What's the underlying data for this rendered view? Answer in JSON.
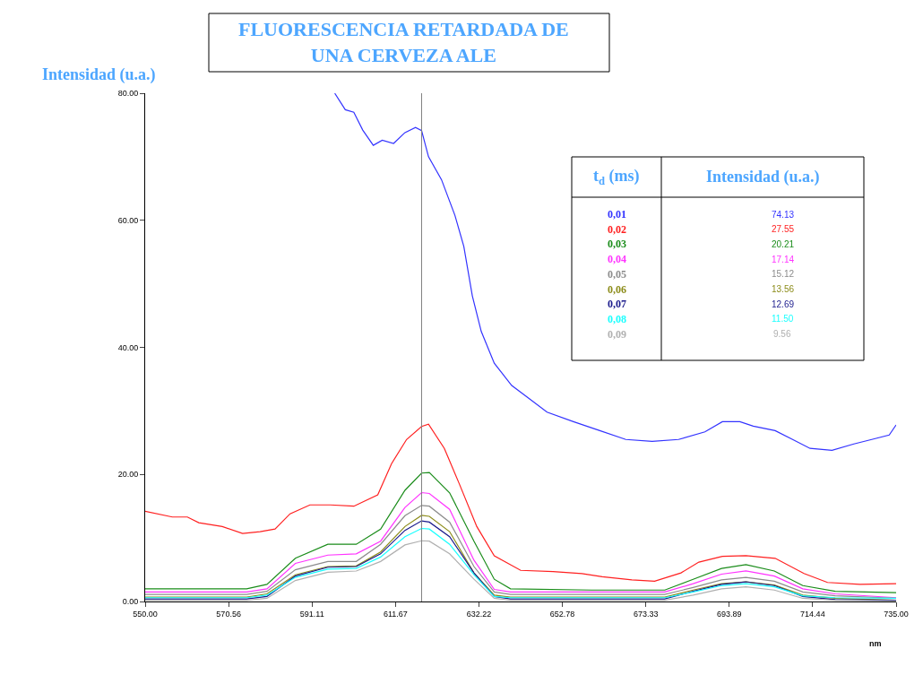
{
  "chart_data": {
    "type": "line",
    "title": "FLUORESCENCIA RETARDADA DE\nUNA CERVEZA ALE",
    "ylabel": "Intensidad (u.a.)",
    "xlabel": "nm",
    "xlim": [
      550,
      735
    ],
    "xticks": [
      {
        "value": 550,
        "label": "550.00"
      },
      {
        "value": 570.56,
        "label": "570.56"
      },
      {
        "value": 591.11,
        "label": "591.11"
      },
      {
        "value": 611.67,
        "label": "611.67"
      },
      {
        "value": 632.22,
        "label": "632.22"
      },
      {
        "value": 652.78,
        "label": "652.78"
      },
      {
        "value": 673.33,
        "label": "673.33"
      },
      {
        "value": 693.89,
        "label": "693.89"
      },
      {
        "value": 714.44,
        "label": "714.44"
      },
      {
        "value": 735,
        "label": "735.00"
      }
    ],
    "ylim": [
      0,
      80
    ],
    "yticks": [
      {
        "value": 0,
        "label": "0.00"
      },
      {
        "value": 20,
        "label": "20.00"
      },
      {
        "value": 40,
        "label": "40.00"
      },
      {
        "value": 60,
        "label": "60.00"
      },
      {
        "value": 80,
        "label": "80.00"
      }
    ],
    "x": [
      550,
      575,
      580,
      587,
      595,
      602,
      608,
      614,
      618.1,
      620,
      625,
      631,
      636,
      640,
      660,
      678,
      685,
      692,
      698,
      705,
      712,
      720,
      735
    ],
    "series": [
      {
        "name": "0,01",
        "color": "#3333ff",
        "x": [
          596.7,
          599.3,
          601.4,
          603.6,
          606.2,
          608.4,
          611.2,
          614.0,
          616.6,
          618.1,
          619.8,
          623.0,
          626.3,
          628.5,
          630.6,
          632.8,
          636.0,
          640.3,
          644.7,
          649.0,
          655.5,
          662.0,
          668.4,
          674.9,
          681.4,
          687.9,
          692.2,
          696.5,
          699.8,
          705.2,
          709.5,
          713.8,
          719.2,
          724.6,
          729.0,
          733.3,
          735
        ],
        "values": [
          80,
          77.4,
          77.0,
          74.2,
          71.8,
          72.6,
          72.1,
          73.8,
          74.6,
          74.13,
          70.0,
          66.4,
          60.8,
          55.9,
          48.1,
          42.5,
          37.5,
          34.0,
          31.9,
          29.8,
          28.3,
          26.9,
          25.5,
          25.2,
          25.5,
          26.7,
          28.3,
          28.3,
          27.6,
          26.9,
          25.5,
          24.1,
          23.8,
          24.8,
          25.5,
          26.2,
          27.8
        ]
      },
      {
        "name": "0,02",
        "color": "#ff2020",
        "x": [
          550,
          556.7,
          560.4,
          563.2,
          569.0,
          574.0,
          578.3,
          582.0,
          585.7,
          590.6,
          595.6,
          601.4,
          607.3,
          610.7,
          614.4,
          618.1,
          619.8,
          623.7,
          627.4,
          631.7,
          636.0,
          642.5,
          650.5,
          657.6,
          662.6,
          669.9,
          675.5,
          682.0,
          686.4,
          692.2,
          698.0,
          705.2,
          712.3,
          718.1,
          726.1,
          735
        ],
        "values": [
          14.2,
          13.3,
          13.3,
          12.4,
          11.8,
          10.7,
          11.0,
          11.4,
          13.8,
          15.2,
          15.2,
          15.0,
          16.8,
          21.7,
          25.5,
          27.55,
          27.9,
          24.1,
          18.5,
          11.8,
          7.2,
          4.9,
          4.7,
          4.4,
          3.9,
          3.4,
          3.2,
          4.5,
          6.2,
          7.1,
          7.2,
          6.8,
          4.4,
          3.0,
          2.7,
          2.8
        ]
      },
      {
        "name": "0,03",
        "color": "#1a8c1a",
        "values": [
          2.0,
          2.0,
          2.7,
          6.8,
          9.0,
          9.0,
          11.4,
          17.5,
          20.21,
          20.3,
          17.1,
          9.5,
          3.5,
          2.0,
          1.8,
          1.8,
          3.5,
          5.2,
          5.8,
          4.8,
          2.5,
          1.6,
          1.4
        ]
      },
      {
        "name": "0,04",
        "color": "#ff33ff",
        "values": [
          1.5,
          1.5,
          2.0,
          6.0,
          7.3,
          7.5,
          9.5,
          14.8,
          17.14,
          17.0,
          14.5,
          6.5,
          1.9,
          1.5,
          1.5,
          1.5,
          2.8,
          4.3,
          4.8,
          4.0,
          2.0,
          1.2,
          0.6
        ]
      },
      {
        "name": "0,05",
        "color": "#8c8c8c",
        "values": [
          1.1,
          1.1,
          1.6,
          5.0,
          6.3,
          6.3,
          9.0,
          13.5,
          15.12,
          15.0,
          12.5,
          5.5,
          1.5,
          1.1,
          1.1,
          1.1,
          2.2,
          3.4,
          3.8,
          3.2,
          1.5,
          0.9,
          0.5
        ]
      },
      {
        "name": "0,06",
        "color": "#8c8c1a",
        "values": [
          0.7,
          0.7,
          1.2,
          4.2,
          5.5,
          5.6,
          7.8,
          11.8,
          13.56,
          13.4,
          11.0,
          4.5,
          1.0,
          0.7,
          0.7,
          0.7,
          1.8,
          2.8,
          3.1,
          2.6,
          1.0,
          0.5,
          0.2
        ]
      },
      {
        "name": "0,07",
        "color": "#1a1a8c",
        "values": [
          0.4,
          0.4,
          0.8,
          4.0,
          5.4,
          5.5,
          7.5,
          11.2,
          12.69,
          12.5,
          10.2,
          4.5,
          0.8,
          0.4,
          0.4,
          0.4,
          1.6,
          2.7,
          3.1,
          2.5,
          0.8,
          0.3,
          0.2
        ]
      },
      {
        "name": "0,08",
        "color": "#1affff",
        "values": [
          0.6,
          0.6,
          1.0,
          3.8,
          5.1,
          5.2,
          7.0,
          10.2,
          11.5,
          11.4,
          9.0,
          4.2,
          0.8,
          0.6,
          0.6,
          0.6,
          1.5,
          2.5,
          2.8,
          2.3,
          0.9,
          0.6,
          0.5
        ]
      },
      {
        "name": "0,09",
        "color": "#b0b0b0",
        "values": [
          0.2,
          0.2,
          0.5,
          3.3,
          4.6,
          4.8,
          6.3,
          8.9,
          9.56,
          9.5,
          7.5,
          3.5,
          0.5,
          0.2,
          0.2,
          0.2,
          1.0,
          2.0,
          2.3,
          1.8,
          0.5,
          0.2,
          0.1
        ]
      }
    ],
    "ref_lines": [
      {
        "axis": "x",
        "value": 618.1,
        "color": "#808080"
      }
    ],
    "annotations": [
      "t$_{d}$ (ms)",
      "Intensidad (u.a.)",
      "74.13",
      "27.55",
      "20.21",
      "17.14",
      "15.12",
      "13.56",
      "12.69",
      "11.50",
      "9.56"
    ],
    "grid": false,
    "legend": false,
    "marker": "none",
    "line_style": "solid"
  }
}
